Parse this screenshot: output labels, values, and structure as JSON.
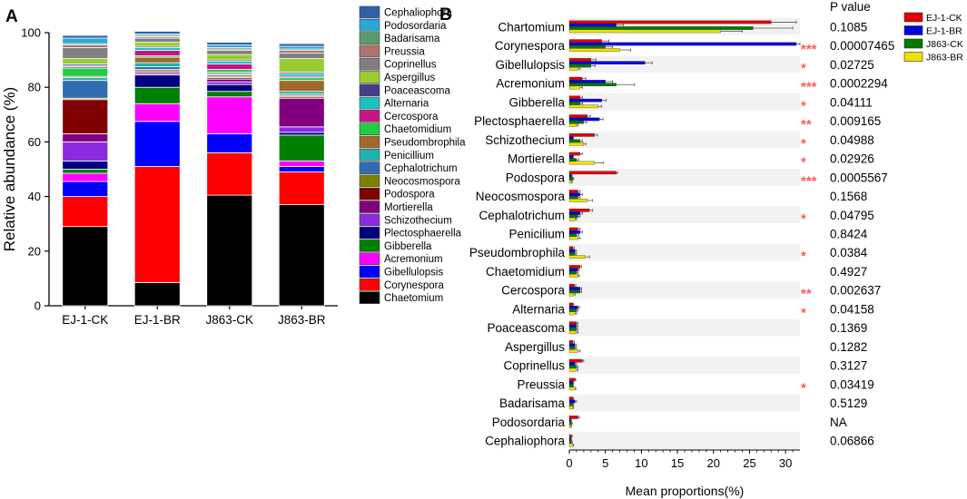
{
  "chart_data": [
    {
      "panel": "A",
      "type": "bar",
      "stacked": true,
      "ylabel": "Relative abundance (%)",
      "ylim": [
        0,
        100
      ],
      "yticks": [
        0,
        20,
        40,
        60,
        80,
        100
      ],
      "categories": [
        "EJ-1-CK",
        "EJ-1-BR",
        "J863-CK",
        "J863-BR"
      ],
      "series": [
        {
          "name": "Chaetomium",
          "color": "#000000",
          "values": [
            29,
            8.5,
            40.5,
            37
          ]
        },
        {
          "name": "Corynespora",
          "color": "#FF0000",
          "values": [
            11,
            42.5,
            15.5,
            12
          ]
        },
        {
          "name": "Gibellulopsis",
          "color": "#0000FF",
          "values": [
            5.5,
            16.5,
            7,
            2
          ]
        },
        {
          "name": "Acremonium",
          "color": "#FF00FF",
          "values": [
            3,
            6.5,
            13.5,
            2
          ]
        },
        {
          "name": "Gibberella",
          "color": "#008000",
          "values": [
            1.5,
            6,
            2,
            9.5
          ]
        },
        {
          "name": "Plectosphaerella",
          "color": "#000080",
          "values": [
            3,
            4.5,
            2.5,
            1
          ]
        },
        {
          "name": "Schizothecium",
          "color": "#8A2BE2",
          "values": [
            7,
            0.5,
            1,
            2
          ]
        },
        {
          "name": "Mortierella",
          "color": "#800080",
          "values": [
            3,
            0.5,
            1,
            10.5
          ]
        },
        {
          "name": "Podospora",
          "color": "#800000",
          "values": [
            12.5,
            0.5,
            0.5,
            0.5
          ]
        },
        {
          "name": "Neocosmospora",
          "color": "#808000",
          "values": [
            0.5,
            0.5,
            0.5,
            0.5
          ]
        },
        {
          "name": "Cephalotrichum",
          "color": "#2F6CB0",
          "values": [
            6.5,
            1,
            0.5,
            0.5
          ]
        },
        {
          "name": "Penicillium",
          "color": "#20B2AA",
          "values": [
            1,
            1.5,
            0.5,
            1
          ]
        },
        {
          "name": "Pseudombrophila",
          "color": "#A0692A",
          "values": [
            0.5,
            2,
            0.5,
            4
          ]
        },
        {
          "name": "Chaetomidium",
          "color": "#22CC44",
          "values": [
            3,
            0.5,
            1,
            1
          ]
        },
        {
          "name": "Cercospora",
          "color": "#C71585",
          "values": [
            0.5,
            2,
            2,
            0.5
          ]
        },
        {
          "name": "Alternaria",
          "color": "#20C0C0",
          "values": [
            0.5,
            1,
            1,
            1
          ]
        },
        {
          "name": "Poaceascoma",
          "color": "#483D8B",
          "values": [
            0.5,
            0.5,
            0.5,
            0.5
          ]
        },
        {
          "name": "Aspergillus",
          "color": "#9ACD32",
          "values": [
            2,
            1.5,
            2,
            5
          ]
        },
        {
          "name": "Coprinellus",
          "color": "#808080",
          "values": [
            4,
            1.5,
            1.5,
            2
          ]
        },
        {
          "name": "Preussia",
          "color": "#B07070",
          "values": [
            1,
            0.5,
            0.5,
            1
          ]
        },
        {
          "name": "Badarisama",
          "color": "#5A9A6A",
          "values": [
            0.5,
            0.5,
            0.5,
            0.5
          ]
        },
        {
          "name": "Podosordaria",
          "color": "#29A8D8",
          "values": [
            2,
            0.5,
            1,
            1
          ]
        },
        {
          "name": "Cephaliophora",
          "color": "#3060A8",
          "values": [
            1,
            1,
            1,
            1
          ]
        }
      ]
    },
    {
      "panel": "B",
      "type": "bar",
      "orientation": "horizontal",
      "xlabel": "Mean proportions(%)",
      "xlim": [
        0,
        32
      ],
      "xticks": [
        0,
        5,
        10,
        15,
        20,
        25,
        30
      ],
      "pvalue_header": "P value",
      "groups": [
        {
          "name": "EJ-1-CK",
          "color": "#E00000"
        },
        {
          "name": "EJ-1-BR",
          "color": "#0000E0"
        },
        {
          "name": "J863-CK",
          "color": "#007A00"
        },
        {
          "name": "J863-BR",
          "color": "#F0E000"
        }
      ],
      "categories": [
        {
          "name": "Chartomium",
          "values": [
            28,
            6.5,
            25.5,
            21
          ],
          "errors": [
            3.5,
            1,
            5.5,
            3
          ],
          "stars": "",
          "p": "0.1085"
        },
        {
          "name": "Corynespora",
          "values": [
            4.5,
            31.5,
            5,
            7
          ],
          "errors": [
            1,
            1.5,
            1,
            1.5
          ],
          "stars": "***",
          "p": "0.00007465"
        },
        {
          "name": "Gibellulopsis",
          "values": [
            3,
            10.5,
            3,
            1.2
          ],
          "errors": [
            0.7,
            1,
            0.6,
            0.3
          ],
          "stars": "*",
          "p": "0.02725"
        },
        {
          "name": "Acremonium",
          "values": [
            1.8,
            5,
            6.5,
            1.5
          ],
          "errors": [
            0.5,
            1,
            2.5,
            0.3
          ],
          "stars": "***",
          "p": "0.0002294"
        },
        {
          "name": "Gibberella",
          "values": [
            1.5,
            4.5,
            1.5,
            4
          ],
          "errors": [
            0.3,
            0.6,
            0.3,
            0.5
          ],
          "stars": "*",
          "p": "0.04111"
        },
        {
          "name": "Plectosphaerella",
          "values": [
            2.5,
            4.2,
            2,
            1
          ],
          "errors": [
            0.4,
            0.5,
            0.4,
            0.2
          ],
          "stars": "**",
          "p": "0.009165"
        },
        {
          "name": "Schizothecium",
          "values": [
            3.5,
            0.5,
            1.5,
            2
          ],
          "errors": [
            0.4,
            0.1,
            0.3,
            0.3
          ],
          "stars": "*",
          "p": "0.04988"
        },
        {
          "name": "Mortierella",
          "values": [
            1.5,
            0.5,
            1,
            3.5
          ],
          "errors": [
            0.3,
            0.1,
            0.3,
            1.2
          ],
          "stars": "*",
          "p": "0.02926"
        },
        {
          "name": "Podospora",
          "values": [
            6.5,
            0.3,
            0.5,
            0.3
          ],
          "errors": [
            0.2,
            0.1,
            0.1,
            0.1
          ],
          "stars": "***",
          "p": "0.0005567"
        },
        {
          "name": "Neocosmospora",
          "values": [
            1.2,
            1.5,
            1.2,
            2.5
          ],
          "errors": [
            0.3,
            0.3,
            0.3,
            0.7
          ],
          "stars": "",
          "p": "0.1568"
        },
        {
          "name": "Cephalotrichum",
          "values": [
            2.8,
            1.5,
            1.2,
            0.8
          ],
          "errors": [
            0.4,
            0.3,
            0.3,
            0.2
          ],
          "stars": "*",
          "p": "0.04795"
        },
        {
          "name": "Penicilium",
          "values": [
            1.2,
            1.5,
            1,
            1.2
          ],
          "errors": [
            0.3,
            0.3,
            0.3,
            0.3
          ],
          "stars": "",
          "p": "0.8424"
        },
        {
          "name": "Pseudombrophila",
          "values": [
            0.5,
            0.8,
            0.8,
            2.2
          ],
          "errors": [
            0.2,
            0.2,
            0.2,
            0.6
          ],
          "stars": "*",
          "p": "0.0384"
        },
        {
          "name": "Chaetomidium",
          "values": [
            1.5,
            1.2,
            1,
            1.2
          ],
          "errors": [
            0.2,
            0.2,
            0.2,
            0.2
          ],
          "stars": "",
          "p": "0.4927"
        },
        {
          "name": "Cercospora",
          "values": [
            0.7,
            1.5,
            1.5,
            0.6
          ],
          "errors": [
            0.2,
            0.2,
            0.2,
            0.2
          ],
          "stars": "**",
          "p": "0.002637"
        },
        {
          "name": "Alternaria",
          "values": [
            0.5,
            1.2,
            1,
            0.8
          ],
          "errors": [
            0.1,
            0.2,
            0.2,
            0.2
          ],
          "stars": "*",
          "p": "0.04158"
        },
        {
          "name": "Poaceascoma",
          "values": [
            1,
            1,
            1,
            1
          ],
          "errors": [
            0.2,
            0.2,
            0.2,
            0.2
          ],
          "stars": "",
          "p": "0.1369"
        },
        {
          "name": "Aspergillus",
          "values": [
            0.5,
            0.8,
            0.8,
            1.2
          ],
          "errors": [
            0.2,
            0.2,
            0.2,
            0.3
          ],
          "stars": "",
          "p": "0.1282"
        },
        {
          "name": "Coprinellus",
          "values": [
            1.8,
            0.8,
            1,
            1
          ],
          "errors": [
            0.2,
            0.2,
            0.2,
            0.2
          ],
          "stars": "",
          "p": "0.3127"
        },
        {
          "name": "Preussia",
          "values": [
            0.8,
            0.5,
            0.5,
            0.8
          ],
          "errors": [
            0.1,
            0.1,
            0.1,
            0.1
          ],
          "stars": "*",
          "p": "0.03419"
        },
        {
          "name": "Badarisama",
          "values": [
            0.5,
            0.8,
            0.5,
            0.5
          ],
          "errors": [
            0.1,
            0.2,
            0.1,
            0.1
          ],
          "stars": "",
          "p": "0.5129"
        },
        {
          "name": "Podosordaria",
          "values": [
            1.2,
            0.2,
            0.3,
            0.2
          ],
          "errors": [
            0.2,
            0.1,
            0.1,
            0.1
          ],
          "stars": "",
          "p": "NA"
        },
        {
          "name": "Cephaliophora",
          "values": [
            0.3,
            0.2,
            0.3,
            0.5
          ],
          "errors": [
            0.1,
            0.1,
            0.1,
            0.1
          ],
          "stars": "",
          "p": "0.06866"
        }
      ]
    }
  ],
  "panel_labels": {
    "a": "A",
    "b": "B"
  }
}
